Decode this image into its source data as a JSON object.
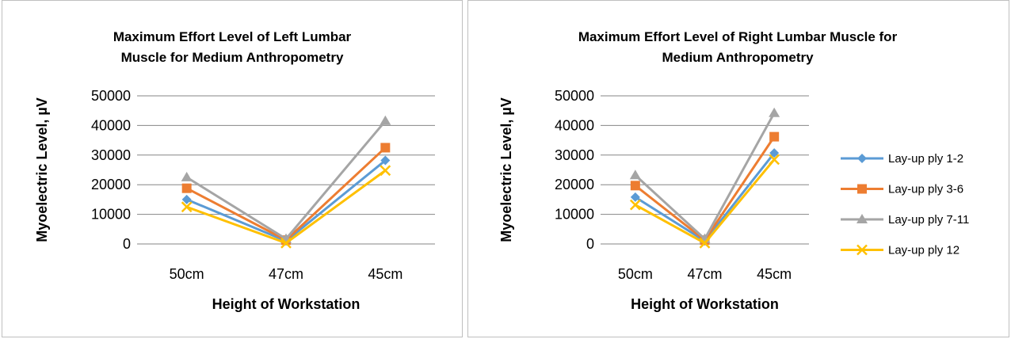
{
  "chart_data": [
    {
      "type": "line",
      "title_lines": [
        "Maximum Effort Level of Left Lumbar",
        "Muscle for Medium Anthropometry"
      ],
      "xlabel": "Height of Workstation",
      "ylabel": "Myoelectric Level, µV",
      "categories": [
        "50cm",
        "47cm",
        "45cm"
      ],
      "ylim": [
        0,
        50000
      ],
      "yticks": [
        0,
        10000,
        20000,
        30000,
        40000,
        50000
      ],
      "ytick_labels": [
        "0",
        "10000",
        "20000",
        "30000",
        "40000",
        "50000"
      ],
      "grid": true,
      "legend": "none",
      "series": [
        {
          "name": "Lay-up ply 1-2",
          "color": "#5b9bd5",
          "marker": "diamond",
          "values": [
            15000,
            1000,
            28200
          ]
        },
        {
          "name": "Lay-up ply 3-6",
          "color": "#ed7d31",
          "marker": "square",
          "values": [
            18800,
            1300,
            32500
          ]
        },
        {
          "name": "Lay-up ply 7-11",
          "color": "#a5a5a5",
          "marker": "triangle",
          "values": [
            22500,
            1700,
            41500
          ]
        },
        {
          "name": "Lay-up ply 12",
          "color": "#ffc000",
          "marker": "x",
          "values": [
            12500,
            300,
            24800
          ]
        }
      ]
    },
    {
      "type": "line",
      "title_lines": [
        "Maximum Effort Level of Right Lumbar Muscle for",
        "Medium Anthropometry"
      ],
      "xlabel": "Height of Workstation",
      "ylabel": "Myoelectric Level, µV",
      "categories": [
        "50cm",
        "47cm",
        "45cm"
      ],
      "ylim": [
        0,
        50000
      ],
      "yticks": [
        0,
        10000,
        20000,
        30000,
        40000,
        50000
      ],
      "ytick_labels": [
        "0",
        "10000",
        "20000",
        "30000",
        "40000",
        "50000"
      ],
      "grid": true,
      "legend": "right",
      "series": [
        {
          "name": "Lay-up ply 1-2",
          "color": "#5b9bd5",
          "marker": "diamond",
          "values": [
            15800,
            1000,
            30700
          ]
        },
        {
          "name": "Lay-up ply 3-6",
          "color": "#ed7d31",
          "marker": "square",
          "values": [
            19700,
            1300,
            36200
          ]
        },
        {
          "name": "Lay-up ply 7-11",
          "color": "#a5a5a5",
          "marker": "triangle",
          "values": [
            23200,
            1700,
            44200
          ]
        },
        {
          "name": "Lay-up ply 12",
          "color": "#ffc000",
          "marker": "x",
          "values": [
            13200,
            300,
            28500
          ]
        }
      ]
    }
  ]
}
